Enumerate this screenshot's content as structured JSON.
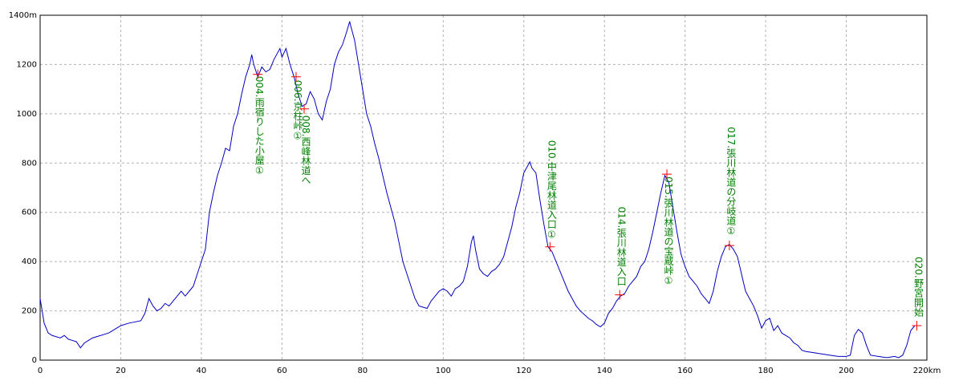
{
  "chart_data": {
    "type": "line",
    "color": "#0000c0",
    "marker_color": "#ff0000",
    "label_color": "#008000",
    "grid": true,
    "xlim": [
      0,
      220
    ],
    "ylim": [
      0,
      1400
    ],
    "xticks": [
      0,
      20,
      40,
      60,
      80,
      100,
      120,
      140,
      160,
      180,
      200,
      {
        "value": 220,
        "label": "220km"
      }
    ],
    "yticks": [
      0,
      200,
      400,
      600,
      800,
      1000,
      1200,
      {
        "value": 1400,
        "label": "1400m"
      }
    ],
    "x": [
      0,
      1,
      2,
      3,
      5,
      6,
      7,
      8,
      9,
      10,
      11,
      12,
      13,
      15,
      17,
      18,
      19,
      20,
      22,
      25,
      26,
      27,
      28,
      29,
      30,
      31,
      32,
      33,
      34,
      35,
      36,
      37,
      38,
      39,
      40,
      41,
      42,
      43,
      44,
      45,
      46,
      47,
      48,
      49,
      50,
      51,
      52,
      52.5,
      53,
      54,
      55,
      56,
      57,
      58,
      59,
      59.5,
      60,
      61,
      62,
      63,
      64,
      65,
      66,
      67,
      68,
      69,
      70,
      71,
      72,
      73,
      74,
      75,
      76,
      76.8,
      77,
      78,
      79,
      80,
      81,
      82,
      83,
      84,
      85,
      86,
      87,
      88,
      89,
      90,
      91,
      92,
      93,
      94,
      95,
      96,
      97,
      98,
      99,
      100,
      101,
      102,
      103,
      104,
      105,
      106,
      107,
      107.5,
      108,
      109,
      110,
      111,
      112,
      113,
      114,
      115,
      116,
      117,
      118,
      119,
      120,
      121,
      121.5,
      122,
      123,
      124,
      125,
      126,
      127,
      128,
      129,
      130,
      131,
      132,
      133,
      134,
      135,
      136,
      137,
      138,
      139,
      140,
      141,
      142,
      143,
      144,
      145,
      146,
      147,
      148,
      149,
      150,
      151,
      152,
      153,
      154,
      155,
      156,
      157,
      158,
      159,
      160,
      161,
      162,
      163,
      164,
      165,
      166,
      167,
      168,
      169,
      170,
      171,
      172,
      173,
      174,
      175,
      176,
      177,
      178,
      179,
      180,
      181,
      182,
      183,
      184,
      185,
      186,
      187,
      188,
      189,
      190,
      192,
      194,
      196,
      198,
      200,
      201,
      202,
      203,
      204,
      205,
      206,
      208,
      210,
      212,
      213,
      214,
      215,
      216,
      217
    ],
    "values": [
      250,
      150,
      110,
      100,
      90,
      100,
      85,
      80,
      75,
      50,
      70,
      80,
      90,
      100,
      110,
      120,
      130,
      140,
      150,
      160,
      190,
      250,
      220,
      200,
      210,
      230,
      220,
      240,
      260,
      280,
      260,
      280,
      300,
      350,
      400,
      450,
      600,
      680,
      750,
      800,
      860,
      850,
      950,
      1000,
      1080,
      1150,
      1200,
      1240,
      1200,
      1150,
      1190,
      1170,
      1180,
      1220,
      1250,
      1265,
      1230,
      1265,
      1200,
      1150,
      1080,
      1030,
      1040,
      1090,
      1060,
      1000,
      975,
      1050,
      1100,
      1200,
      1250,
      1280,
      1330,
      1375,
      1360,
      1300,
      1200,
      1100,
      1000,
      950,
      880,
      820,
      750,
      680,
      620,
      560,
      480,
      400,
      350,
      300,
      250,
      220,
      215,
      210,
      240,
      260,
      280,
      290,
      280,
      260,
      290,
      300,
      320,
      380,
      480,
      505,
      450,
      370,
      350,
      340,
      360,
      370,
      390,
      420,
      480,
      540,
      620,
      680,
      760,
      790,
      805,
      780,
      760,
      650,
      550,
      460,
      440,
      400,
      360,
      320,
      280,
      250,
      220,
      200,
      185,
      170,
      160,
      145,
      135,
      150,
      190,
      210,
      240,
      260,
      270,
      300,
      320,
      340,
      380,
      400,
      450,
      520,
      600,
      680,
      750,
      720,
      620,
      520,
      430,
      380,
      340,
      320,
      300,
      270,
      250,
      230,
      280,
      360,
      420,
      460,
      470,
      450,
      420,
      350,
      280,
      250,
      220,
      180,
      130,
      160,
      170,
      120,
      140,
      110,
      100,
      90,
      70,
      60,
      40,
      35,
      30,
      25,
      20,
      15,
      15,
      20,
      100,
      125,
      110,
      60,
      20,
      15,
      10,
      15,
      10,
      20,
      60,
      120,
      140
    ],
    "annotations": [
      {
        "label": "004.雨宿りした小屋①",
        "x": 54,
        "y": 1160
      },
      {
        "label": "006.京柱峠①",
        "x": 63.5,
        "y": 1150
      },
      {
        "label": "008.西峰林道へ",
        "x": 65.5,
        "y": 1020
      },
      {
        "label": "010.中津尾林道入口①",
        "x": 126.5,
        "y": 460
      },
      {
        "label": "014.張川林道入口",
        "x": 143.8,
        "y": 265
      },
      {
        "label": "015.張川林道の宝蔵峠①",
        "x": 155.5,
        "y": 755
      },
      {
        "label": "017.張川林道の分岐道①",
        "x": 171,
        "y": 465
      },
      {
        "label": "020.野宮開始",
        "x": 217.5,
        "y": 140
      }
    ]
  }
}
